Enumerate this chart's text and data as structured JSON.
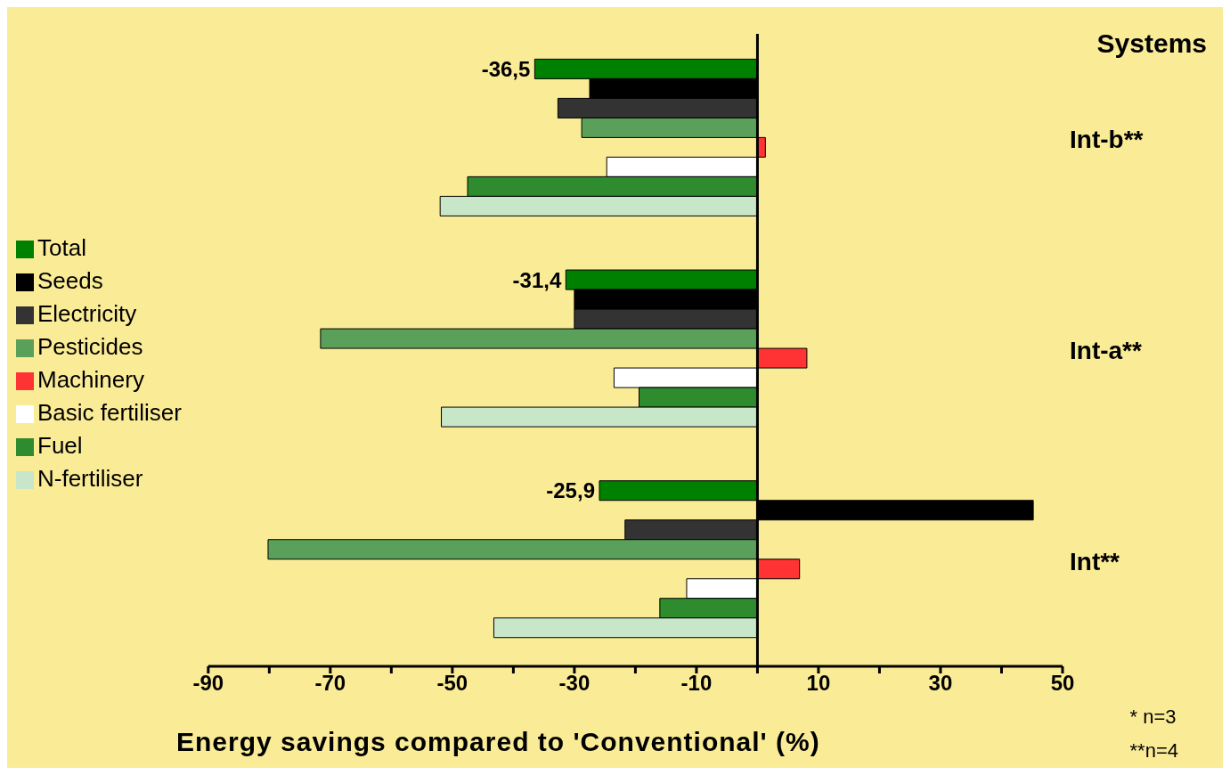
{
  "chart_data": {
    "type": "bar",
    "orientation": "horizontal",
    "categories": [
      "Int-b**",
      "Int-a**",
      "Int**"
    ],
    "ylabel": "Systems",
    "xlabel": "Energy savings compared to 'Conventional' (%)",
    "xlim": [
      -90,
      50
    ],
    "xticks": [
      -90,
      {
        "value": -80,
        "label": null
      },
      -70,
      {
        "value": -60,
        "label": null
      },
      -50,
      {
        "value": -40,
        "label": null
      },
      -30,
      {
        "value": -20,
        "label": null
      },
      -10,
      {
        "value": 0,
        "label": null
      },
      10,
      {
        "value": 20,
        "label": null
      },
      30,
      {
        "value": 40,
        "label": null
      },
      50
    ],
    "series": [
      {
        "name": "Total",
        "color": "#008000",
        "values": [
          -36.5,
          -31.4,
          -25.9
        ],
        "value_labels": [
          "-36,5",
          "-31,4",
          "-25,9"
        ]
      },
      {
        "name": "Seeds",
        "color": "#000000",
        "values": [
          -27.5,
          -30,
          45.2
        ]
      },
      {
        "name": "Electricity",
        "color": "#333333",
        "values": [
          -32.7,
          -30,
          -21.7
        ]
      },
      {
        "name": "Pesticides",
        "color": "#5aa05a",
        "values": [
          -28.8,
          -71.6,
          -80.2
        ]
      },
      {
        "name": "Machinery",
        "color": "#ff3333",
        "values": [
          1.3,
          8.1,
          6.9
        ]
      },
      {
        "name": "Basic fertiliser",
        "color": "#ffffff",
        "values": [
          -24.7,
          -23.5,
          -11.6
        ]
      },
      {
        "name": "Fuel",
        "color": "#2e8b2e",
        "values": [
          -47.5,
          -19.4,
          -16
        ]
      },
      {
        "name": "N-fertiliser",
        "color": "#c8e6c8",
        "values": [
          -52,
          -51.8,
          -43.2
        ]
      }
    ],
    "ref_lines": [
      {
        "axis": "x",
        "value": 0,
        "color": "#000000"
      }
    ],
    "annotations": [
      "* n=3",
      "**n=4"
    ],
    "legend": "left",
    "grid": false
  }
}
